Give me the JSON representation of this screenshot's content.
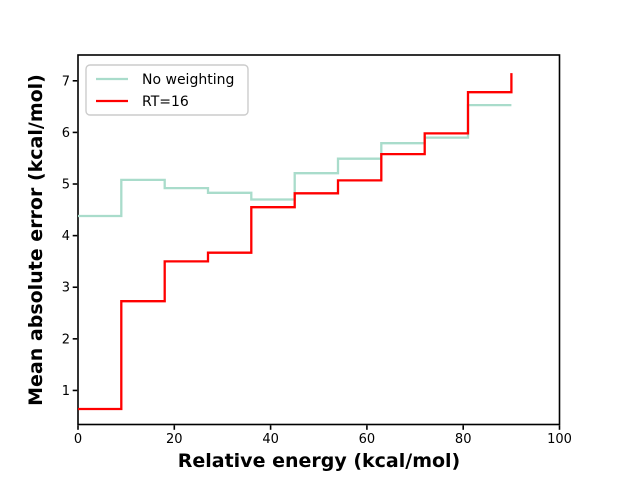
{
  "figure": {
    "background": "#ffffff",
    "axes_color": "#000000",
    "legend_border_color": "#cccccc",
    "legend_background": "#ffffff"
  },
  "chart_data": {
    "type": "line",
    "subtype": "step-post",
    "title": "",
    "xlabel": "Relative energy (kcal/mol)",
    "ylabel": "Mean absolute error (kcal/mol)",
    "xlim": [
      0,
      100
    ],
    "ylim": [
      0.34,
      7.5
    ],
    "x_ticks": [
      0,
      20,
      40,
      60,
      80,
      100
    ],
    "y_ticks": [
      1,
      2,
      3,
      4,
      5,
      6,
      7
    ],
    "grid": false,
    "legend_position": "upper left",
    "x": [
      0,
      9,
      18,
      27,
      36,
      45,
      54,
      63,
      72,
      81,
      90
    ],
    "series": [
      {
        "name": "No weighting",
        "color": "#a9dccb",
        "values": [
          4.38,
          5.08,
          4.92,
          4.83,
          4.7,
          5.21,
          5.49,
          5.79,
          5.9,
          6.53,
          6.53
        ]
      },
      {
        "name": "RT=16",
        "color": "#ff0000",
        "values": [
          0.64,
          2.73,
          3.5,
          3.67,
          4.55,
          4.82,
          5.07,
          5.58,
          5.98,
          6.78,
          7.15
        ]
      }
    ]
  }
}
